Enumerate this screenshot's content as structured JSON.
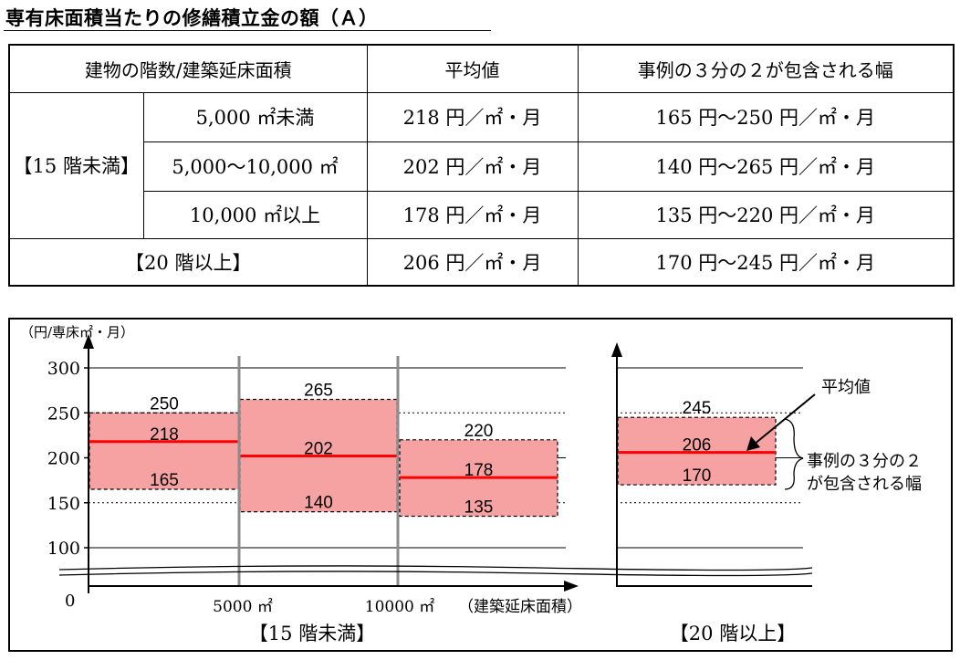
{
  "title": "専有床面積当たりの修繕積立金の額（Ａ）",
  "table": {
    "headers": [
      "建物の階数/建築延床面積",
      "平均値",
      "事例の３分の２が包含される幅"
    ],
    "group1_label": "【15 階未満】",
    "rows": [
      {
        "area": "5,000 ㎡未満",
        "avg": "218 円／㎡・月",
        "range": "165 円～250 円／㎡・月"
      },
      {
        "area": "5,000～10,000 ㎡",
        "avg": "202 円／㎡・月",
        "range": "140 円～265 円／㎡・月"
      },
      {
        "area": "10,000 ㎡以上",
        "avg": "178 円／㎡・月",
        "range": "135 円～220 円／㎡・月"
      }
    ],
    "group2": {
      "label": "【20 階以上】",
      "avg": "206 円／㎡・月",
      "range": "170 円～245 円／㎡・月"
    }
  },
  "chart_data": {
    "type": "bar",
    "ylabel": "（円/専床㎡・月）",
    "xlabel": "（建築延床面積）",
    "yticks": [
      "300",
      "250",
      "200",
      "150",
      "100"
    ],
    "ytick_values": [
      300,
      250,
      200,
      150,
      100
    ],
    "zero_label": "0",
    "ylim": [
      100,
      300
    ],
    "x_breaks": [
      "5000 ㎡",
      "10000 ㎡"
    ],
    "group_labels": [
      "【15 階未満】",
      "【20 階以上】"
    ],
    "series": [
      {
        "low": 165,
        "mean": 218,
        "high": 250
      },
      {
        "low": 140,
        "mean": 202,
        "high": 265
      },
      {
        "low": 135,
        "mean": 178,
        "high": 220
      },
      {
        "low": 170,
        "mean": 206,
        "high": 245
      }
    ],
    "annotations": {
      "mean": "平均値",
      "range_line1": "事例の３分の２",
      "range_line2": "が包含される幅"
    },
    "colors": {
      "band": "#f7a2a2",
      "mean_line": "#ff0000",
      "divider": "#8c8c8c"
    }
  }
}
